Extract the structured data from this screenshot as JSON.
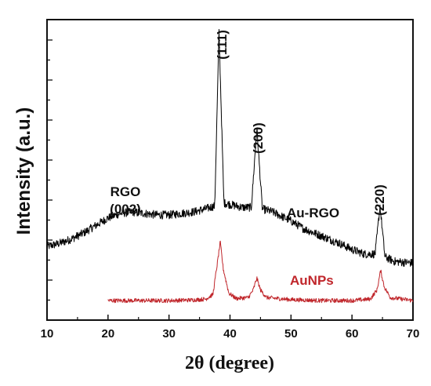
{
  "chart_data": {
    "type": "line",
    "title": "",
    "xlabel": "2θ (degree)",
    "ylabel": "Intensity (a.u.)",
    "xlim": [
      10,
      70
    ],
    "x_ticks": [
      "10",
      "20",
      "30",
      "40",
      "50",
      "60",
      "70"
    ],
    "y_tick_labels_shown": false,
    "grid": false,
    "legend": "none (inline curve labels)",
    "series": [
      {
        "name": "Au-RGO",
        "color": "#000000",
        "x": [
          10,
          12,
          14,
          16,
          18,
          20,
          22,
          24,
          26,
          28,
          30,
          32,
          34,
          36,
          37.5,
          38.2,
          39,
          40,
          42,
          43.5,
          44.4,
          45.3,
          47,
          50,
          52,
          55,
          58,
          60,
          62,
          63.8,
          64.6,
          65.4,
          67,
          70
        ],
        "y": [
          0.245,
          0.255,
          0.27,
          0.29,
          0.315,
          0.34,
          0.355,
          0.36,
          0.355,
          0.35,
          0.35,
          0.355,
          0.36,
          0.37,
          0.38,
          0.96,
          0.39,
          0.385,
          0.375,
          0.375,
          0.64,
          0.37,
          0.36,
          0.33,
          0.305,
          0.28,
          0.255,
          0.235,
          0.22,
          0.22,
          0.38,
          0.21,
          0.195,
          0.19
        ]
      },
      {
        "name": "AuNPs",
        "color": "#c0262b",
        "x": [
          20,
          25,
          30,
          34,
          36,
          37.2,
          38,
          38.4,
          38.9,
          39.8,
          41,
          43,
          43.8,
          44.4,
          45,
          46,
          50,
          55,
          60,
          63,
          64.1,
          64.7,
          65.3,
          66.3,
          70
        ],
        "y": [
          0.065,
          0.065,
          0.065,
          0.067,
          0.07,
          0.085,
          0.2,
          0.26,
          0.17,
          0.09,
          0.072,
          0.075,
          0.1,
          0.14,
          0.1,
          0.075,
          0.068,
          0.065,
          0.065,
          0.07,
          0.1,
          0.165,
          0.11,
          0.075,
          0.065
        ]
      }
    ],
    "annotations": {
      "rgo_line1": "RGO",
      "rgo_line2": "(002)",
      "peak_111": "(111)",
      "peak_200": "(200)",
      "peak_220": "(220)",
      "label_au_rgo": "Au-RGO",
      "label_aunps": "AuNPs"
    }
  }
}
